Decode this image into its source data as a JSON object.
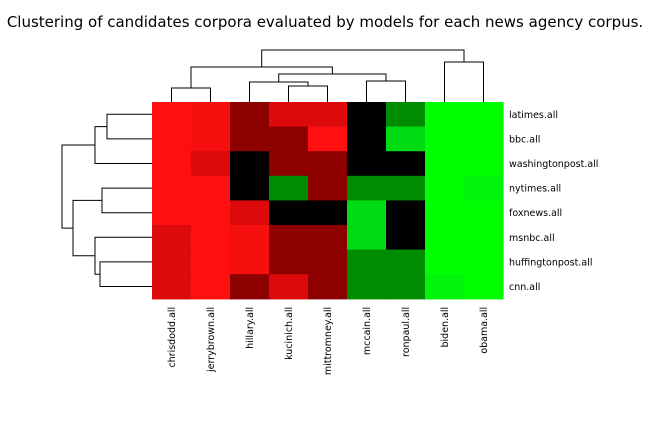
{
  "chart_data": {
    "type": "heatmap",
    "title": "Clustering of candidates corpora evaluated by models for each news agency corpus.",
    "xlabel": "",
    "ylabel": "",
    "columns": [
      "chrisdodd.all",
      "jerrybrown.all",
      "hillary.all",
      "kucinich.all",
      "mittromney.all",
      "mccain.all",
      "ronpaul.all",
      "biden.all",
      "obama.all"
    ],
    "rows": [
      "latimes.all",
      "bbc.all",
      "washingtonpost.all",
      "nytimes.all",
      "foxnews.all",
      "msnbc.all",
      "huffingtonpost.all",
      "cnn.all"
    ],
    "cell_colors": [
      [
        "#ff1010",
        "#f50f0f",
        "#8c0000",
        "#dc0a0a",
        "#dc0a0a",
        "#000000",
        "#008c00",
        "#00ff00",
        "#00ff00"
      ],
      [
        "#ff1010",
        "#f50f0f",
        "#8c0000",
        "#8c0000",
        "#ff1010",
        "#000000",
        "#00dc14",
        "#00ff00",
        "#00ff00"
      ],
      [
        "#ff1010",
        "#dc0a0a",
        "#000000",
        "#8c0000",
        "#8c0000",
        "#000000",
        "#000000",
        "#00ff00",
        "#00ff00"
      ],
      [
        "#ff1010",
        "#ff1010",
        "#000000",
        "#008c00",
        "#8c0000",
        "#008c00",
        "#008c00",
        "#00ff00",
        "#00f50a"
      ],
      [
        "#ff1010",
        "#ff1010",
        "#dc0a0a",
        "#000000",
        "#000000",
        "#00dc14",
        "#000000",
        "#00ff00",
        "#00ff00"
      ],
      [
        "#dc0a0a",
        "#ff1010",
        "#f50f0f",
        "#8c0000",
        "#8c0000",
        "#00dc14",
        "#000000",
        "#00ff00",
        "#00ff00"
      ],
      [
        "#dc0a0a",
        "#ff1010",
        "#f50f0f",
        "#8c0000",
        "#8c0000",
        "#008c00",
        "#008c00",
        "#00ff00",
        "#00ff00"
      ],
      [
        "#dc0a0a",
        "#ff1010",
        "#8c0000",
        "#dc0a0a",
        "#8c0000",
        "#008c00",
        "#008c00",
        "#00f50a",
        "#00ff00"
      ]
    ],
    "column_dendrogram": [
      [
        0,
        1
      ],
      [
        3,
        4
      ],
      [
        2,
        10
      ],
      [
        5,
        6
      ],
      [
        11,
        12
      ],
      [
        9,
        13
      ],
      [
        7,
        8
      ],
      [
        14,
        15
      ]
    ],
    "row_dendrogram": [
      [
        0,
        1
      ],
      [
        3,
        4
      ],
      [
        6,
        7
      ],
      [
        5,
        10
      ],
      [
        2,
        8
      ],
      [
        9,
        11
      ],
      [
        12,
        13
      ]
    ],
    "legend": "none",
    "grid": false
  }
}
